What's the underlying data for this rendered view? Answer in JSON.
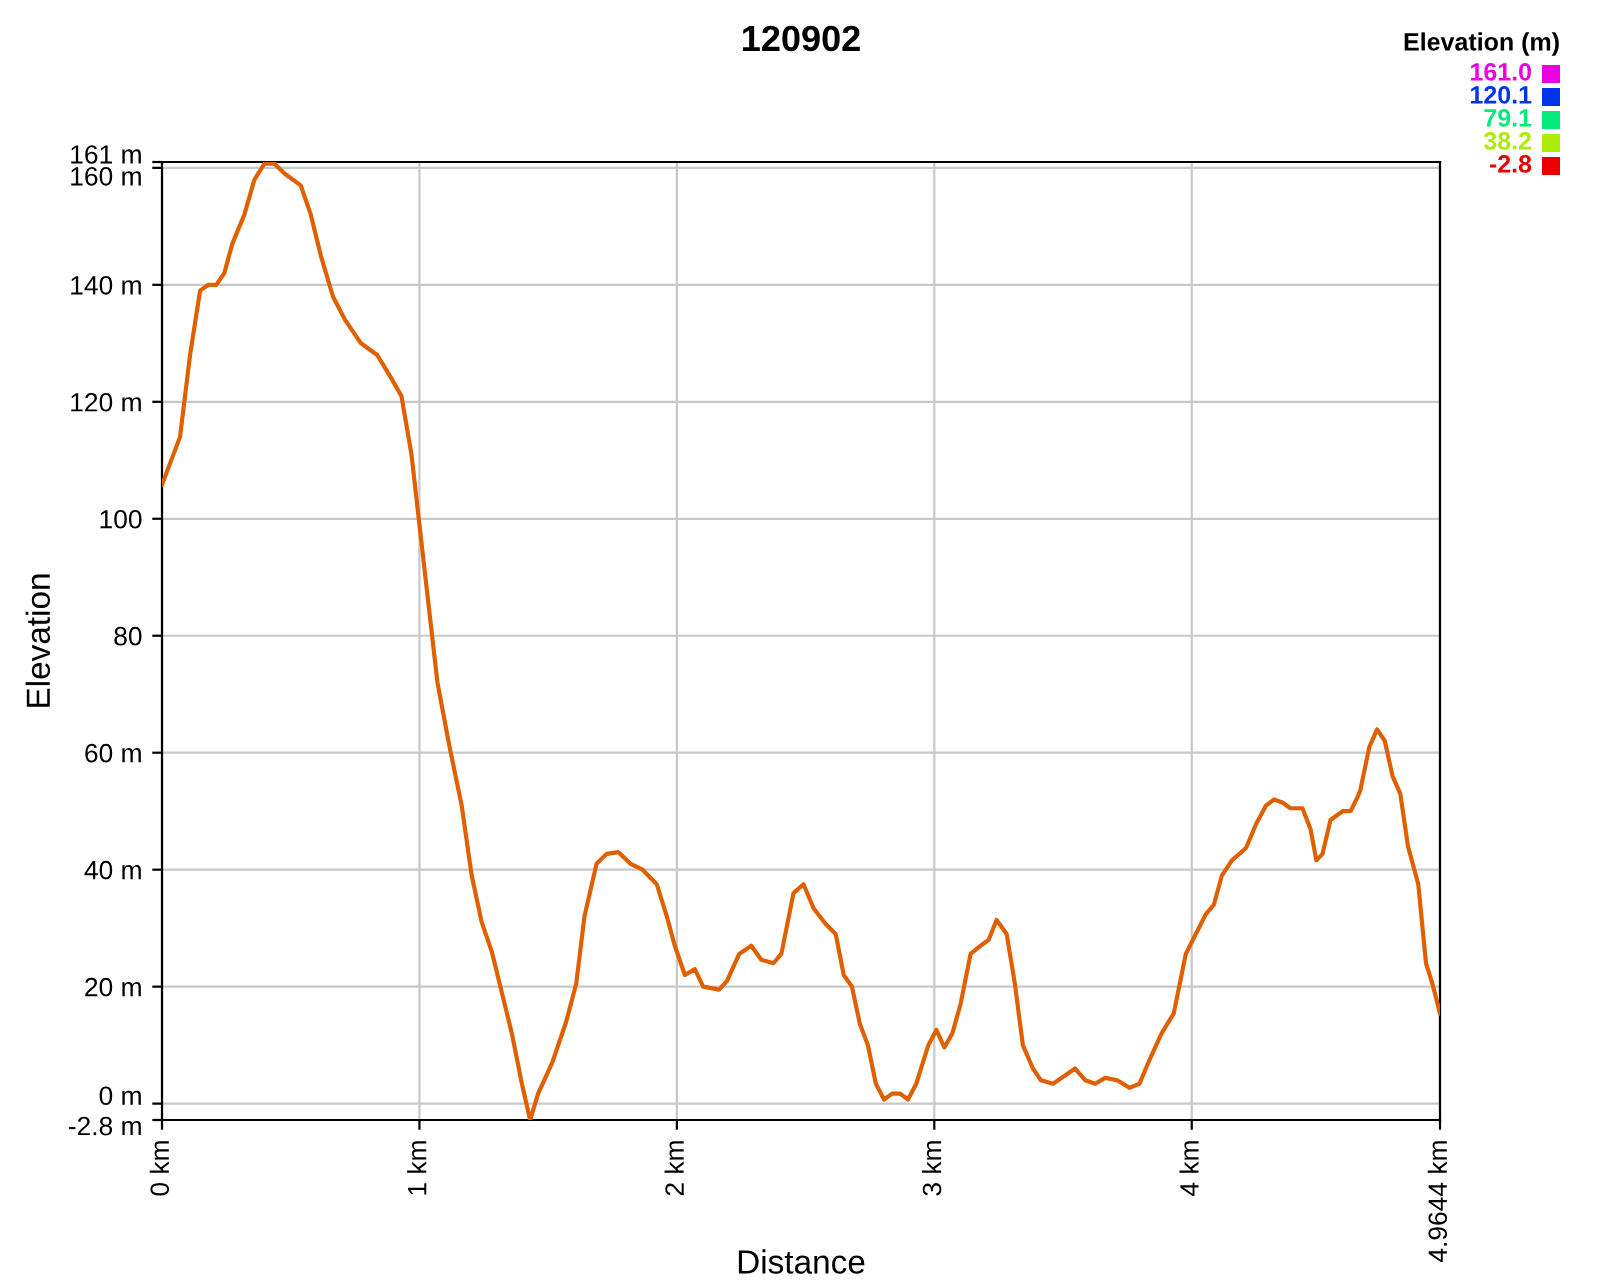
{
  "chart_data": {
    "type": "line",
    "title": "120902",
    "xlabel": "Distance",
    "ylabel": "Elevation",
    "clabel": "Elevation (m)",
    "clim": [
      -2.8,
      161.0
    ],
    "cticks": [
      {
        "value": 161.0,
        "label": "161.0"
      },
      {
        "value": 120.1,
        "label": "120.1"
      },
      {
        "value": 79.1,
        "label": "79.1"
      },
      {
        "value": 38.2,
        "label": "38.2"
      },
      {
        "value": -2.8,
        "label": "-2.8"
      }
    ],
    "x": [
      0,
      0.07,
      0.109,
      0.148,
      0.18,
      0.211,
      0.242,
      0.273,
      0.32,
      0.359,
      0.398,
      0.437,
      0.477,
      0.539,
      0.578,
      0.617,
      0.664,
      0.711,
      0.773,
      0.836,
      0.891,
      0.93,
      0.969,
      1.0,
      1.031,
      1.07,
      1.117,
      1.164,
      1.203,
      1.242,
      1.281,
      1.32,
      1.359,
      1.398,
      1.43,
      1.461,
      1.516,
      1.57,
      1.609,
      1.641,
      1.688,
      1.727,
      1.773,
      1.82,
      1.867,
      1.922,
      1.961,
      1.992,
      2.031,
      2.07,
      2.102,
      2.164,
      2.195,
      2.242,
      2.289,
      2.328,
      2.375,
      2.406,
      2.453,
      2.492,
      2.531,
      2.578,
      2.617,
      2.648,
      2.68,
      2.711,
      2.742,
      2.773,
      2.805,
      2.836,
      2.867,
      2.898,
      2.93,
      2.977,
      3.008,
      3.039,
      3.07,
      3.102,
      3.141,
      3.18,
      3.211,
      3.242,
      3.281,
      3.313,
      3.344,
      3.383,
      3.414,
      3.461,
      3.508,
      3.547,
      3.586,
      3.625,
      3.664,
      3.711,
      3.758,
      3.797,
      3.836,
      3.883,
      3.93,
      3.977,
      4.016,
      4.055,
      4.086,
      4.117,
      4.156,
      4.211,
      4.25,
      4.289,
      4.32,
      4.352,
      4.383,
      4.43,
      4.461,
      4.484,
      4.508,
      4.539,
      4.586,
      4.617,
      4.645,
      4.655,
      4.69,
      4.72,
      4.75,
      4.78,
      4.81,
      4.84,
      4.88,
      4.91,
      4.935,
      4.9644
    ],
    "color": "#e06000",
    "values": [
      105.8,
      114,
      128,
      139,
      140,
      140,
      142,
      147,
      152,
      158,
      160.7,
      160.7,
      159,
      157,
      152,
      145,
      138,
      134,
      130,
      128,
      124,
      121,
      111,
      99,
      87,
      72,
      61,
      51,
      39,
      31,
      26,
      19,
      12,
      3.4,
      -2.8,
      1.7,
      7,
      14,
      20.5,
      32,
      41,
      42.7,
      43,
      41,
      40,
      37.5,
      32,
      27,
      22,
      23,
      20,
      19.5,
      21,
      25.6,
      27,
      24.6,
      24,
      25.6,
      36,
      37.5,
      33.4,
      30.7,
      29,
      22,
      20,
      13.6,
      10,
      3.4,
      0.7,
      1.7,
      1.7,
      0.7,
      3.4,
      10,
      12.6,
      9.6,
      12,
      17,
      25.6,
      27,
      28,
      31.4,
      29,
      20.5,
      10,
      6,
      4,
      3.4,
      4.8,
      6,
      4,
      3.4,
      4.4,
      4,
      2.7,
      3.4,
      7.5,
      12,
      15.4,
      25.6,
      29,
      32.4,
      34,
      39,
      41.6,
      43.7,
      47.8,
      51,
      52,
      51.5,
      50.5,
      50.5,
      47,
      41.6,
      42.7,
      48.5,
      50,
      50,
      52.5,
      53.6,
      61,
      64,
      62,
      56,
      53,
      44,
      37.5,
      24,
      20.5,
      15.4
    ],
    "xlim": [
      0,
      4.9644
    ],
    "xticks": [
      {
        "value": 0,
        "label": "0 km"
      },
      {
        "value": 1,
        "label": "1 km"
      },
      {
        "value": 2,
        "label": "2 km"
      },
      {
        "value": 3,
        "label": "3 km"
      },
      {
        "value": 4,
        "label": "4 km"
      },
      {
        "value": 4.9644,
        "label": "4.9644 km"
      }
    ],
    "ylim": [
      -2.8,
      161
    ],
    "yticks": [
      {
        "value": -2.8,
        "label": "-2.8 m"
      },
      {
        "value": 0,
        "label": "0 m"
      },
      {
        "value": 20,
        "label": "20 m"
      },
      {
        "value": 40,
        "label": "40 m"
      },
      {
        "value": 60,
        "label": "60 m"
      },
      80,
      100,
      {
        "value": 120,
        "label": "120 m"
      },
      {
        "value": 140,
        "label": "140 m"
      },
      {
        "value": 160,
        "label": "160 m"
      },
      {
        "value": 161,
        "label": "161 m"
      }
    ],
    "grid": true
  }
}
